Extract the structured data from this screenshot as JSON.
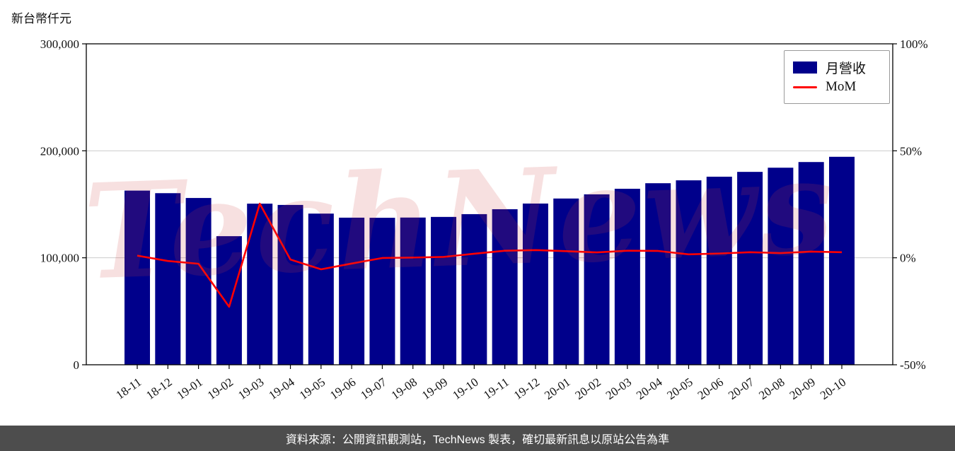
{
  "page": {
    "y_axis_title": "新台幣仟元",
    "watermark": "TechNews",
    "footer": "資料來源：公開資訊觀測站，TechNews 製表，確切最新訊息以原站公告為準"
  },
  "chart_data": {
    "type": "bar+line",
    "title": "",
    "categories": [
      "18-11",
      "18-12",
      "19-01",
      "19-02",
      "19-03",
      "19-04",
      "19-05",
      "19-06",
      "19-07",
      "19-08",
      "19-09",
      "19-10",
      "19-11",
      "19-12",
      "20-01",
      "20-02",
      "20-03",
      "20-04",
      "20-05",
      "20-06",
      "20-07",
      "20-08",
      "20-09",
      "20-10"
    ],
    "series": [
      {
        "name": "月營收",
        "type": "bar",
        "axis": "left",
        "color": "#00008b",
        "values": [
          162800,
          160400,
          155900,
          120200,
          150600,
          149400,
          141300,
          137500,
          137400,
          137600,
          138200,
          140800,
          145400,
          150700,
          155400,
          159300,
          164500,
          169700,
          172400,
          175800,
          180300,
          184200,
          189500,
          194400
        ]
      },
      {
        "name": "MoM",
        "type": "line",
        "axis": "right",
        "color": "#ff0000",
        "values": [
          1.0,
          -1.5,
          -2.8,
          -22.9,
          25.3,
          -0.8,
          -5.4,
          -2.7,
          -0.1,
          0.1,
          0.4,
          1.9,
          3.3,
          3.6,
          3.1,
          2.5,
          3.3,
          3.2,
          1.6,
          2.0,
          2.6,
          2.2,
          2.9,
          2.6
        ]
      }
    ],
    "left_axis": {
      "title": "新台幣仟元",
      "min": 0,
      "max": 300000,
      "ticks": [
        {
          "v": 0,
          "label": "0"
        },
        {
          "v": 100000,
          "label": "100,000"
        },
        {
          "v": 200000,
          "label": "200,000"
        },
        {
          "v": 300000,
          "label": "300,000"
        }
      ],
      "gridlines": [
        100000,
        200000
      ]
    },
    "right_axis": {
      "min": -50,
      "max": 100,
      "ticks": [
        {
          "v": -50,
          "label": "-50%"
        },
        {
          "v": 0,
          "label": "0%"
        },
        {
          "v": 50,
          "label": "50%"
        },
        {
          "v": 100,
          "label": "100%"
        }
      ]
    },
    "legend_position": "top-right",
    "grid": true
  }
}
